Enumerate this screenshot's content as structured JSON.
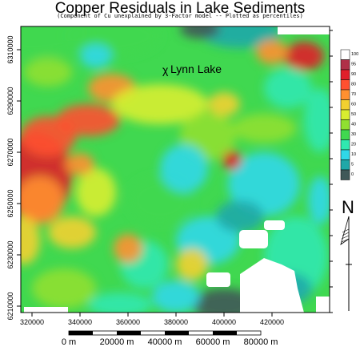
{
  "header": {
    "title": "Copper Residuals in Lake Sediments",
    "subtitle": "(Component of Cu unexplained by 3-Factor model -- Plotted as percentiles)"
  },
  "map": {
    "place_label": "Lynn Lake",
    "place_marker": "χ",
    "x_ticks": [
      "320000",
      "340000",
      "360000",
      "380000",
      "400000",
      "420000"
    ],
    "y_ticks": [
      "6310000",
      "6290000",
      "6270000",
      "6250000",
      "6230000",
      "6210000"
    ],
    "north_label": "N"
  },
  "legend": {
    "levels": [
      {
        "label": "100",
        "color": "#ffffff"
      },
      {
        "label": "95",
        "color": "#b03048"
      },
      {
        "label": "90",
        "color": "#e0202a"
      },
      {
        "label": "80",
        "color": "#ff5030"
      },
      {
        "label": "70",
        "color": "#ff9030"
      },
      {
        "label": "60",
        "color": "#f2d030"
      },
      {
        "label": "50",
        "color": "#d8ee30"
      },
      {
        "label": "40",
        "color": "#90e030"
      },
      {
        "label": "30",
        "color": "#40d850"
      },
      {
        "label": "20",
        "color": "#30e8b0"
      },
      {
        "label": "10",
        "color": "#30d8e8"
      },
      {
        "label": "5",
        "color": "#20a8a8"
      },
      {
        "label": "0",
        "color": "#405858"
      }
    ]
  },
  "scale_bar": {
    "labels": [
      "0 m",
      "20000 m",
      "40000 m",
      "60000 m",
      "80000 m"
    ]
  }
}
